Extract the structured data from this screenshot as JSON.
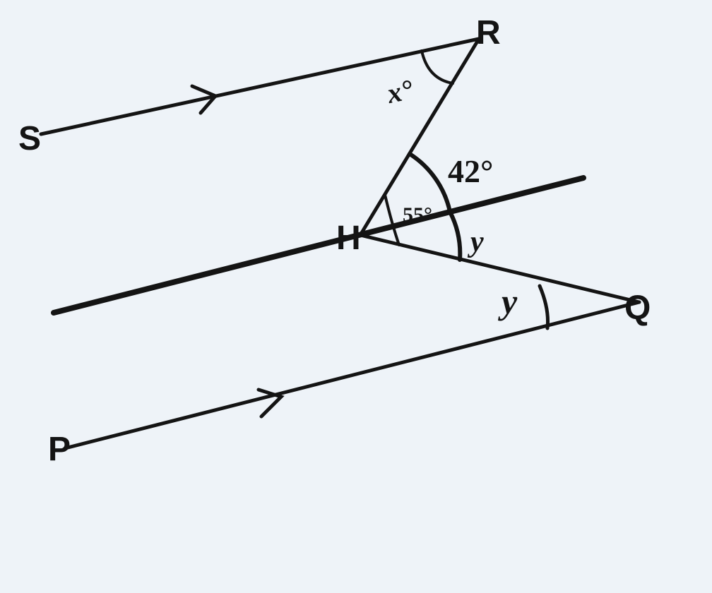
{
  "points": {
    "S": "S",
    "R": "R",
    "H": "H",
    "Q": "Q",
    "P": "P"
  },
  "angles": {
    "at_R": "x°",
    "upper_at_H": "42°",
    "inner_at_H": "55°",
    "lower_at_H": "y",
    "at_Q": "y"
  },
  "colors": {
    "ink": "#141414",
    "paper": "#eef3f8"
  }
}
